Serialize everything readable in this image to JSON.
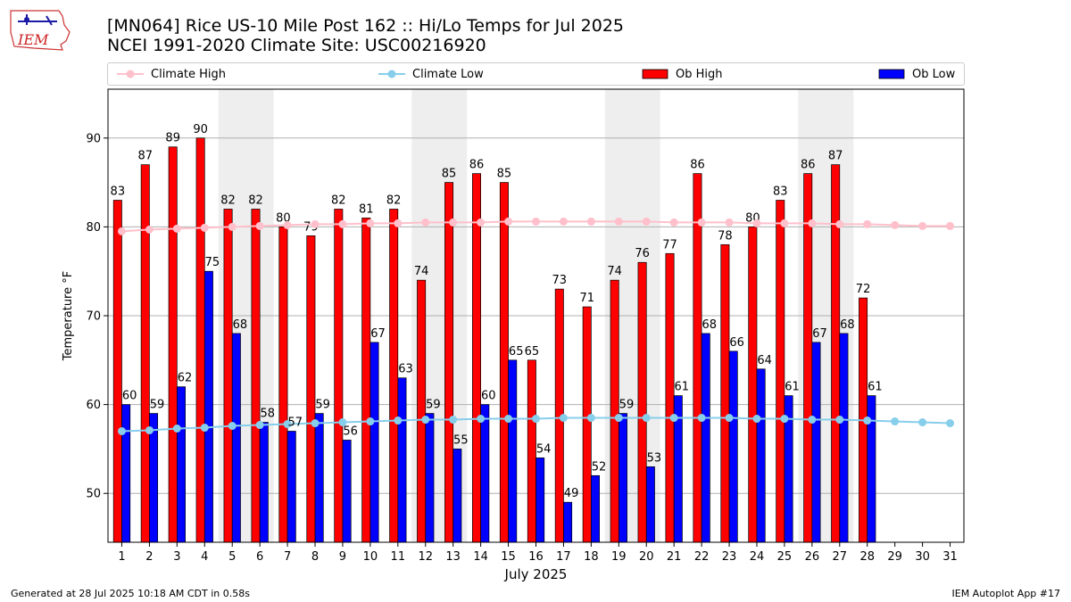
{
  "header": {
    "title_line1": "[MN064] Rice US-10 Mile Post 162 :: Hi/Lo Temps for Jul 2025",
    "title_line2": "NCEI 1991-2020 Climate Site: USC00216920",
    "logo_text": "IEM"
  },
  "legend": {
    "climate_high": "Climate High",
    "climate_low": "Climate Low",
    "ob_high": "Ob High",
    "ob_low": "Ob Low"
  },
  "footer": {
    "generated": "Generated at 28 Jul 2025 10:18 AM CDT in 0.58s",
    "app": "IEM Autoplot App #17"
  },
  "colors": {
    "ob_high": "#ff0000",
    "ob_low": "#0000ff",
    "climate_high": "#ffc0cb",
    "climate_low": "#87ceeb",
    "weekend_shade": "#eeeeee",
    "grid": "#b0b0b0"
  },
  "chart_data": {
    "type": "bar",
    "xlabel": "July 2025",
    "ylabel": "Temperature °F",
    "xlim": [
      0.5,
      31.5
    ],
    "ylim": [
      44.5,
      95.5
    ],
    "yticks": [
      50,
      60,
      70,
      80,
      90
    ],
    "grid": "horizontal",
    "legend_placement": "top",
    "categories": [
      "1",
      "2",
      "3",
      "4",
      "5",
      "6",
      "7",
      "8",
      "9",
      "10",
      "11",
      "12",
      "13",
      "14",
      "15",
      "16",
      "17",
      "18",
      "19",
      "20",
      "21",
      "22",
      "23",
      "24",
      "25",
      "26",
      "27",
      "28",
      "29",
      "30",
      "31"
    ],
    "shaded_days": [
      [
        5,
        6
      ],
      [
        12,
        13
      ],
      [
        19,
        20
      ],
      [
        26,
        27
      ]
    ],
    "series": [
      {
        "name": "Ob High",
        "kind": "bar",
        "values": [
          83,
          87,
          89,
          90,
          82,
          82,
          80,
          79,
          82,
          81,
          82,
          74,
          85,
          86,
          85,
          65,
          73,
          71,
          74,
          76,
          77,
          86,
          78,
          80,
          83,
          86,
          87,
          72,
          null,
          null,
          null
        ]
      },
      {
        "name": "Ob Low",
        "kind": "bar",
        "values": [
          60,
          59,
          62,
          75,
          68,
          58,
          57,
          59,
          56,
          67,
          63,
          59,
          55,
          60,
          65,
          54,
          49,
          52,
          59,
          53,
          61,
          68,
          66,
          64,
          61,
          67,
          68,
          61,
          null,
          null,
          null
        ]
      },
      {
        "name": "Climate High",
        "kind": "line",
        "values": [
          79.5,
          79.7,
          79.8,
          79.9,
          80.0,
          80.1,
          80.2,
          80.3,
          80.3,
          80.4,
          80.4,
          80.5,
          80.5,
          80.5,
          80.6,
          80.6,
          80.6,
          80.6,
          80.6,
          80.6,
          80.5,
          80.5,
          80.5,
          80.4,
          80.4,
          80.4,
          80.3,
          80.3,
          80.2,
          80.1,
          80.1
        ]
      },
      {
        "name": "Climate Low",
        "kind": "line",
        "values": [
          57.0,
          57.1,
          57.3,
          57.4,
          57.6,
          57.7,
          57.8,
          57.9,
          58.0,
          58.1,
          58.2,
          58.3,
          58.3,
          58.4,
          58.4,
          58.4,
          58.5,
          58.5,
          58.5,
          58.5,
          58.5,
          58.5,
          58.5,
          58.4,
          58.4,
          58.3,
          58.3,
          58.2,
          58.1,
          58.0,
          57.9
        ]
      }
    ]
  }
}
